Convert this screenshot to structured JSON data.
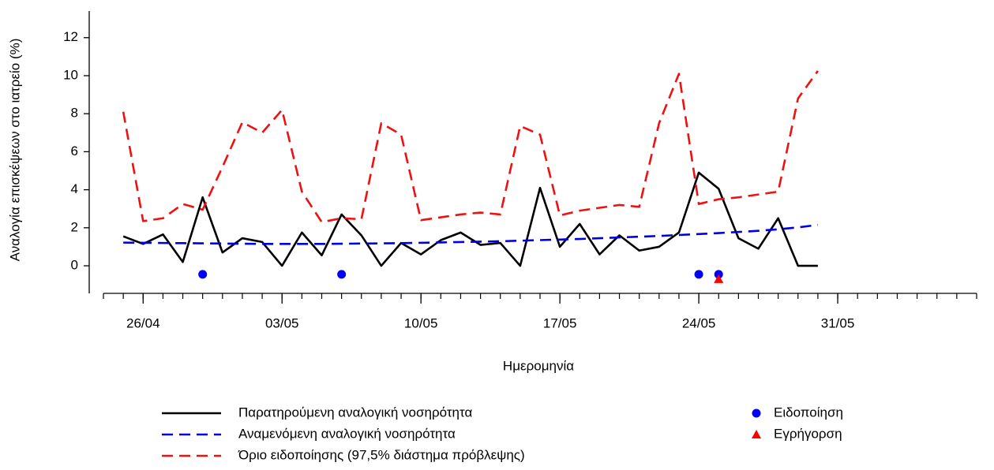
{
  "chart_data": {
    "type": "line",
    "x_label": "Ημερομηνία",
    "y_label": "Αναλογία επισκέψεων στο ιατρείο (%)",
    "x": [
      "25/04",
      "26/04",
      "27/04",
      "28/04",
      "29/04",
      "30/04",
      "01/05",
      "02/05",
      "03/05",
      "04/05",
      "05/05",
      "06/05",
      "07/05",
      "08/05",
      "09/05",
      "10/05",
      "11/05",
      "12/05",
      "13/05",
      "14/05",
      "15/05",
      "16/05",
      "17/05",
      "18/05",
      "19/05",
      "20/05",
      "21/05",
      "22/05",
      "23/05",
      "24/05",
      "25/05",
      "26/05",
      "27/05",
      "28/05",
      "29/05",
      "30/05"
    ],
    "xlim": [
      "24/04",
      "07/06"
    ],
    "xticks": [
      "26/04",
      "03/05",
      "10/05",
      "17/05",
      "24/05",
      "31/05"
    ],
    "ylim": [
      -1.45,
      13.4
    ],
    "yticks": [
      0,
      2,
      4,
      6,
      8,
      10,
      12
    ],
    "series": [
      {
        "name": "Παρατηρούμενη αναλογική νοσηρότητα",
        "color": "#000000",
        "style": "solid",
        "values": [
          1.55,
          1.15,
          1.65,
          0.2,
          3.6,
          0.7,
          1.45,
          1.25,
          0,
          1.75,
          0.55,
          2.7,
          1.6,
          0,
          1.2,
          0.6,
          1.35,
          1.75,
          1.1,
          1.2,
          0,
          4.1,
          1.0,
          2.2,
          0.6,
          1.6,
          0.8,
          1.0,
          1.75,
          4.9,
          4.05,
          1.45,
          0.9,
          2.5,
          0,
          0
        ]
      },
      {
        "name": "Αναμενόμενη αναλογική νοσηρότητα",
        "color": "#0000dd",
        "style": "dashed",
        "values": [
          1.22,
          1.21,
          1.2,
          1.19,
          1.18,
          1.17,
          1.16,
          1.15,
          1.15,
          1.15,
          1.15,
          1.16,
          1.17,
          1.18,
          1.19,
          1.21,
          1.23,
          1.25,
          1.27,
          1.29,
          1.32,
          1.35,
          1.38,
          1.41,
          1.45,
          1.49,
          1.53,
          1.57,
          1.62,
          1.67,
          1.72,
          1.78,
          1.84,
          1.92,
          2.02,
          2.15
        ]
      },
      {
        "name": "Όριο ειδοποίησης (97,5% διάστημα πρόβλεψης)",
        "color": "#ee1111",
        "style": "dashed",
        "values": [
          8.1,
          2.35,
          2.5,
          3.25,
          2.95,
          5.2,
          7.55,
          7.0,
          8.2,
          3.9,
          2.3,
          2.5,
          2.45,
          7.5,
          6.9,
          2.4,
          2.55,
          2.7,
          2.8,
          2.7,
          7.35,
          6.9,
          2.65,
          2.9,
          3.05,
          3.2,
          3.1,
          7.5,
          10.1,
          3.25,
          3.5,
          3.6,
          3.75,
          3.9,
          8.8,
          10.25
        ]
      },
      {
        "name": "Ειδοποίηση",
        "color": "#0000ff",
        "marker": "circle",
        "x": [
          "29/04",
          "06/05",
          "24/05",
          "25/05"
        ],
        "values": [
          -0.45,
          -0.45,
          -0.45,
          -0.45
        ]
      },
      {
        "name": "Εγρήγορση",
        "color": "#ff0000",
        "marker": "triangle",
        "x": [
          "25/05"
        ],
        "values": [
          -0.7
        ]
      }
    ]
  }
}
